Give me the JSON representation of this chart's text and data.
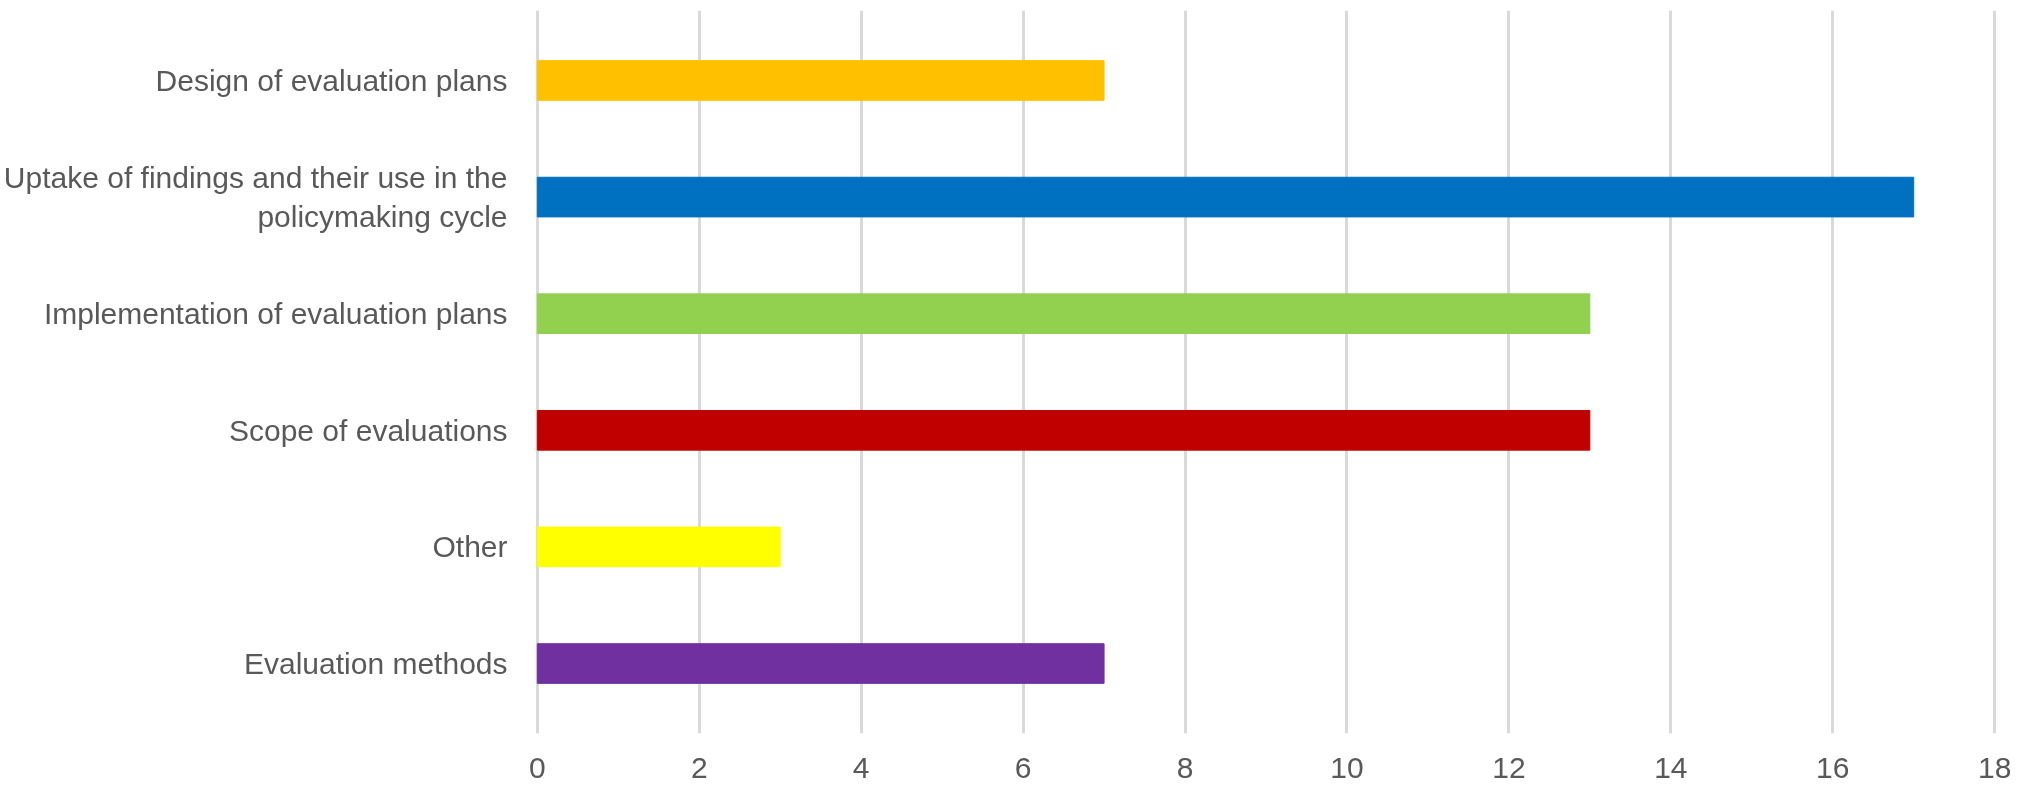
{
  "chart_data": {
    "type": "bar",
    "orientation": "horizontal",
    "categories": [
      "Design of evaluation plans",
      "Uptake of findings and their use in the policymaking cycle",
      "Implementation of evaluation plans",
      "Scope of evaluations",
      "Other",
      "Evaluation methods"
    ],
    "values": [
      7,
      17,
      13,
      13,
      3,
      7
    ],
    "colors": [
      "#ffc000",
      "#0070c0",
      "#92d050",
      "#c00000",
      "#ffff00",
      "#7030a0"
    ],
    "xlim": [
      0,
      18
    ],
    "xticks": [
      0,
      2,
      4,
      6,
      8,
      10,
      12,
      14,
      16,
      18
    ],
    "grid": "x"
  }
}
